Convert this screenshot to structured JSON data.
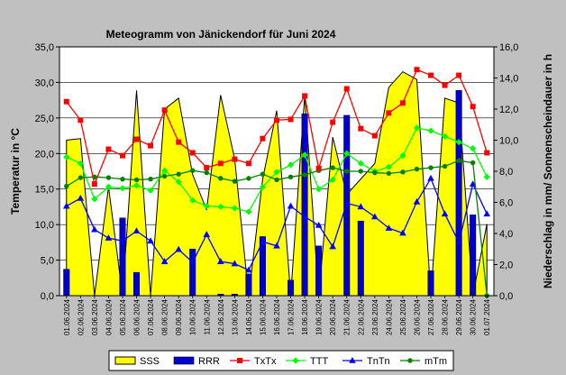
{
  "chart_data": {
    "type": "meteogram",
    "title": "Meteogramm von Jänickendorf für Juni 2024",
    "ylabel_left": "Temperatur in °C",
    "ylabel_right": "Niederschlag in mm/ Sonnenscheindauer in h",
    "ylim_left": [
      0,
      35
    ],
    "ylim_right": [
      0,
      16
    ],
    "yticks_left": [
      "0,0",
      "5,0",
      "10,0",
      "15,0",
      "20,0",
      "25,0",
      "30,0",
      "35,0"
    ],
    "yticks_right": [
      "0,0",
      "2,0",
      "4,0",
      "6,0",
      "8,0",
      "10,0",
      "12,0",
      "14,0",
      "16,0"
    ],
    "categories": [
      "01.06.2024",
      "02.06.2024",
      "03.06.2024",
      "04.06.2024",
      "05.06.2024",
      "06.06.2024",
      "07.06.2024",
      "08.06.2024",
      "09.06.2024",
      "10.06.2024",
      "11.06.2024",
      "12.06.2024",
      "13.06.2024",
      "14.06.2024",
      "15.06.2024",
      "16.06.2024",
      "17.06.2024",
      "18.06.2024",
      "19.06.2024",
      "20.06.2024",
      "21.06.2024",
      "22.06.2024",
      "23.06.2024",
      "24.06.2024",
      "25.06.2024",
      "26.06.2024",
      "27.06.2024",
      "28.06.2024",
      "29.06.2024",
      "30.06.2024",
      "01.07.2024"
    ],
    "grid": true,
    "legend_position": "bottom",
    "series": [
      {
        "name": "SSS",
        "kind": "area",
        "axis": "right",
        "color": "#ffff00",
        "edge": "#000000",
        "values": [
          10.0,
          10.1,
          0.0,
          7.0,
          0.0,
          13.2,
          0.0,
          12.0,
          12.7,
          7.8,
          5.5,
          12.9,
          8.8,
          0.0,
          7.5,
          11.9,
          0.0,
          12.9,
          0.0,
          10.2,
          6.5,
          7.5,
          8.5,
          13.4,
          14.4,
          13.9,
          0.0,
          12.7,
          12.4,
          0.0,
          4.6
        ]
      },
      {
        "name": "RRR",
        "kind": "bar",
        "axis": "right",
        "color": "#0000cc",
        "values": [
          1.7,
          0.0,
          0.0,
          0.0,
          5.0,
          1.5,
          0.0,
          0.0,
          0.0,
          3.0,
          0.0,
          0.1,
          0.1,
          1.4,
          3.8,
          0.0,
          1.0,
          11.7,
          3.2,
          0.0,
          11.6,
          4.8,
          0.0,
          0.0,
          0.0,
          0.0,
          1.6,
          0.0,
          13.2,
          5.2,
          0.0
        ]
      },
      {
        "name": "TxTx",
        "kind": "line",
        "axis": "left",
        "color": "#ff0000",
        "values": [
          27.3,
          24.7,
          15.7,
          20.6,
          19.7,
          22.0,
          21.1,
          26.1,
          21.6,
          20.1,
          18.0,
          18.6,
          19.2,
          18.6,
          22.1,
          24.7,
          24.8,
          28.1,
          17.9,
          24.4,
          29.1,
          23.5,
          22.5,
          25.7,
          27.1,
          31.8,
          31.0,
          29.6,
          31.0,
          26.6,
          20.1
        ]
      },
      {
        "name": "TTT",
        "kind": "line",
        "axis": "left",
        "color": "#00ff00",
        "values": [
          19.5,
          18.6,
          13.6,
          15.3,
          15.1,
          15.5,
          14.8,
          17.6,
          16.0,
          13.4,
          12.6,
          12.5,
          12.3,
          11.8,
          15.3,
          17.4,
          18.4,
          19.8,
          15.0,
          16.3,
          20.0,
          18.6,
          17.5,
          18.1,
          19.7,
          23.6,
          23.2,
          22.4,
          21.6,
          20.7,
          16.7
        ]
      },
      {
        "name": "TnTn",
        "kind": "line",
        "axis": "left",
        "color": "#0000ff",
        "values": [
          12.6,
          13.7,
          9.3,
          8.1,
          7.7,
          9.1,
          7.7,
          4.8,
          6.5,
          4.7,
          8.6,
          4.8,
          4.5,
          3.6,
          7.6,
          7.0,
          12.6,
          11.1,
          9.9,
          6.9,
          13.0,
          12.5,
          11.1,
          9.5,
          8.8,
          13.2,
          16.5,
          11.5,
          7.5,
          15.7,
          11.5
        ]
      },
      {
        "name": "mTm",
        "kind": "line",
        "axis": "left",
        "color": "#008000",
        "values": [
          15.4,
          16.6,
          16.7,
          16.6,
          16.4,
          16.3,
          16.4,
          16.8,
          17.1,
          17.6,
          17.3,
          16.5,
          16.1,
          16.5,
          17.1,
          16.3,
          16.7,
          17.0,
          17.6,
          18.0,
          17.5,
          17.5,
          17.3,
          17.2,
          17.4,
          17.8,
          18.0,
          18.2,
          19.0,
          18.7,
          0.0
        ]
      }
    ]
  }
}
